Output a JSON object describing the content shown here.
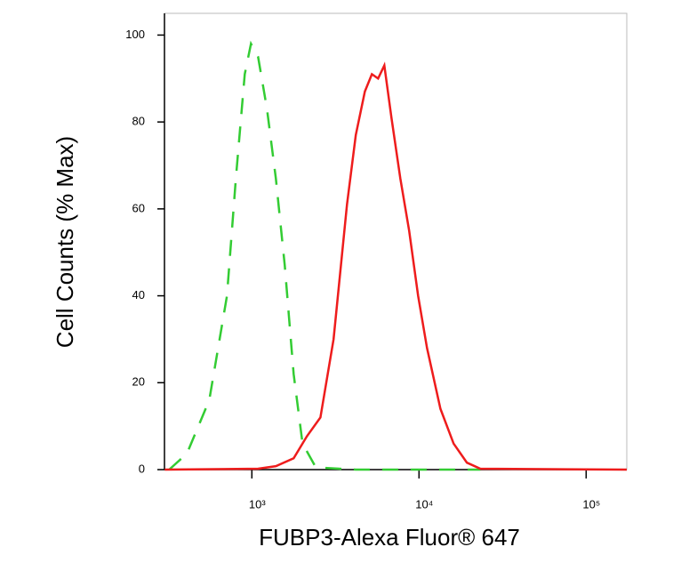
{
  "chart_data": {
    "type": "line",
    "x_label": "FUBP3-Alexa Fluor® 647",
    "y_label": "Cell Counts (% Max)",
    "xscale": "log",
    "xlim": [
      300,
      175000
    ],
    "xticks": [
      {
        "value": 1000,
        "label": "10³"
      },
      {
        "value": 10000,
        "label": "10⁴"
      },
      {
        "value": 100000,
        "label": "10⁵"
      }
    ],
    "ylim": [
      0,
      105
    ],
    "yticks": [
      0,
      20,
      40,
      60,
      80,
      100
    ],
    "series": [
      {
        "color": "#33cc33",
        "dash": true,
        "x": [
          320,
          409,
          556,
          710,
          802,
          907,
          988,
          1090,
          1231,
          1392,
          1573,
          1778,
          2010,
          2415,
          4188,
          8730,
          23300
        ],
        "values": [
          0,
          3.7,
          16,
          40,
          67,
          91,
          98,
          95,
          83,
          67,
          47,
          22,
          6,
          0.5,
          0,
          0,
          0
        ]
      },
      {
        "color": "#ee1c1c",
        "dash": false,
        "x": [
          301,
          1090,
          1392,
          1778,
          2138,
          2570,
          3083,
          3706,
          4188,
          4742,
          5227,
          5690,
          6205,
          6842,
          7730,
          8730,
          9880,
          11170,
          13430,
          16110,
          19360,
          23280,
          175000
        ],
        "values": [
          0,
          0.2,
          0.8,
          2.6,
          7.7,
          12,
          30,
          61,
          77,
          87,
          91,
          90,
          93,
          81,
          67,
          55,
          40,
          28,
          14,
          6,
          1.6,
          0.2,
          0
        ]
      }
    ]
  }
}
